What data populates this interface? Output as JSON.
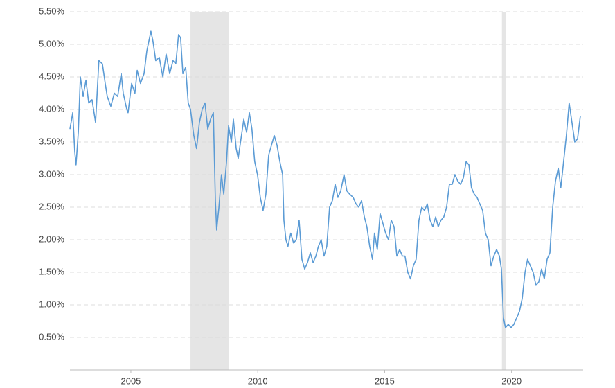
{
  "chart_data": {
    "type": "line",
    "color": "#5b9bd5",
    "grid": true,
    "xlim": [
      2002.6,
      2022.82
    ],
    "xticks": [
      2005,
      2010,
      2015,
      2020
    ],
    "ylim": [
      0,
      5.5
    ],
    "yticks": [
      {
        "value": 0.5,
        "label": "0.50%"
      },
      {
        "value": 1,
        "label": "1.00%"
      },
      {
        "value": 1.5,
        "label": "1.50%"
      },
      {
        "value": 2,
        "label": "2.00%"
      },
      {
        "value": 2.5,
        "label": "2.50%"
      },
      {
        "value": 3,
        "label": "3.00%"
      },
      {
        "value": 3.5,
        "label": "3.50%"
      },
      {
        "value": 4,
        "label": "4.00%"
      },
      {
        "value": 4.5,
        "label": "4.50%"
      },
      {
        "value": 5,
        "label": "5.00%"
      },
      {
        "value": 5.5,
        "label": "5.50%"
      }
    ],
    "recessions": [
      [
        2007.35,
        2008.85
      ],
      [
        2019.62,
        2019.78
      ]
    ],
    "x": [
      2002.6,
      2002.71,
      2002.79,
      2002.84,
      2002.93,
      2003.01,
      2003.12,
      2003.23,
      2003.34,
      2003.47,
      2003.61,
      2003.74,
      2003.88,
      2003.99,
      2004.07,
      2004.21,
      2004.35,
      2004.48,
      2004.62,
      2004.7,
      2004.84,
      2004.89,
      2005.03,
      2005.16,
      2005.25,
      2005.38,
      2005.52,
      2005.63,
      2005.79,
      2005.87,
      2005.98,
      2006.12,
      2006.26,
      2006.39,
      2006.53,
      2006.66,
      2006.77,
      2006.88,
      2006.96,
      2007.05,
      2007.16,
      2007.26,
      2007.35,
      2007.48,
      2007.59,
      2007.7,
      2007.81,
      2007.92,
      2008.03,
      2008.14,
      2008.25,
      2008.33,
      2008.38,
      2008.47,
      2008.57,
      2008.66,
      2008.77,
      2008.85,
      2008.96,
      2009.04,
      2009.15,
      2009.23,
      2009.34,
      2009.45,
      2009.56,
      2009.67,
      2009.77,
      2009.88,
      2009.99,
      2010.1,
      2010.21,
      2010.32,
      2010.43,
      2010.54,
      2010.65,
      2010.76,
      2010.87,
      2010.98,
      2011.03,
      2011.11,
      2011.19,
      2011.3,
      2011.41,
      2011.52,
      2011.63,
      2011.74,
      2011.85,
      2011.96,
      2012.07,
      2012.18,
      2012.29,
      2012.39,
      2012.5,
      2012.61,
      2012.72,
      2012.83,
      2012.94,
      2013.05,
      2013.16,
      2013.27,
      2013.4,
      2013.51,
      2013.62,
      2013.76,
      2013.87,
      2013.98,
      2014.09,
      2014.2,
      2014.3,
      2014.41,
      2014.52,
      2014.6,
      2014.71,
      2014.82,
      2014.93,
      2015.04,
      2015.15,
      2015.26,
      2015.37,
      2015.48,
      2015.59,
      2015.7,
      2015.8,
      2015.91,
      2016.02,
      2016.13,
      2016.24,
      2016.35,
      2016.46,
      2016.57,
      2016.68,
      2016.79,
      2016.9,
      2017.01,
      2017.11,
      2017.22,
      2017.33,
      2017.44,
      2017.55,
      2017.66,
      2017.77,
      2017.88,
      2017.99,
      2018.1,
      2018.21,
      2018.32,
      2018.42,
      2018.53,
      2018.64,
      2018.75,
      2018.86,
      2018.97,
      2019.08,
      2019.19,
      2019.3,
      2019.41,
      2019.52,
      2019.6,
      2019.68,
      2019.76,
      2019.87,
      2019.98,
      2020.09,
      2020.2,
      2020.31,
      2020.42,
      2020.53,
      2020.63,
      2020.74,
      2020.85,
      2020.96,
      2021.07,
      2021.18,
      2021.29,
      2021.4,
      2021.51,
      2021.62,
      2021.73,
      2021.84,
      2021.94,
      2022.05,
      2022.16,
      2022.27,
      2022.38,
      2022.49,
      2022.6,
      2022.71
    ],
    "values": [
      3.7,
      3.95,
      3.35,
      3.15,
      3.65,
      4.5,
      4.2,
      4.45,
      4.1,
      4.15,
      3.8,
      4.75,
      4.7,
      4.4,
      4.2,
      4.05,
      4.25,
      4.2,
      4.55,
      4.25,
      4.0,
      3.95,
      4.4,
      4.25,
      4.6,
      4.4,
      4.55,
      4.9,
      5.2,
      5.05,
      4.75,
      4.8,
      4.5,
      4.85,
      4.55,
      4.75,
      4.7,
      5.15,
      5.1,
      4.55,
      4.65,
      4.1,
      4.0,
      3.6,
      3.4,
      3.8,
      4.0,
      4.1,
      3.7,
      3.85,
      3.95,
      2.6,
      2.15,
      2.5,
      3.0,
      2.7,
      3.2,
      3.75,
      3.5,
      3.85,
      3.4,
      3.25,
      3.55,
      3.85,
      3.65,
      3.95,
      3.7,
      3.2,
      3.0,
      2.65,
      2.45,
      2.7,
      3.3,
      3.45,
      3.6,
      3.45,
      3.2,
      3.0,
      2.3,
      2.0,
      1.9,
      2.1,
      1.95,
      2.0,
      2.3,
      1.7,
      1.55,
      1.65,
      1.8,
      1.65,
      1.75,
      1.9,
      2.0,
      1.75,
      1.9,
      2.5,
      2.6,
      2.85,
      2.65,
      2.75,
      3.0,
      2.75,
      2.7,
      2.65,
      2.55,
      2.5,
      2.6,
      2.35,
      2.2,
      1.9,
      1.7,
      2.1,
      1.85,
      2.4,
      2.25,
      2.1,
      2.0,
      2.3,
      2.2,
      1.75,
      1.85,
      1.75,
      1.75,
      1.5,
      1.4,
      1.6,
      1.7,
      2.3,
      2.5,
      2.45,
      2.55,
      2.3,
      2.2,
      2.35,
      2.2,
      2.3,
      2.35,
      2.5,
      2.85,
      2.85,
      3.0,
      2.9,
      2.85,
      2.95,
      3.2,
      3.15,
      2.8,
      2.7,
      2.65,
      2.55,
      2.45,
      2.1,
      2.0,
      1.6,
      1.75,
      1.85,
      1.75,
      1.55,
      0.8,
      0.65,
      0.7,
      0.65,
      0.7,
      0.8,
      0.9,
      1.1,
      1.5,
      1.7,
      1.6,
      1.5,
      1.3,
      1.35,
      1.55,
      1.4,
      1.7,
      1.8,
      2.5,
      2.9,
      3.1,
      2.8,
      3.2,
      3.6,
      4.1,
      3.8,
      3.5,
      3.55,
      3.9
    ]
  }
}
